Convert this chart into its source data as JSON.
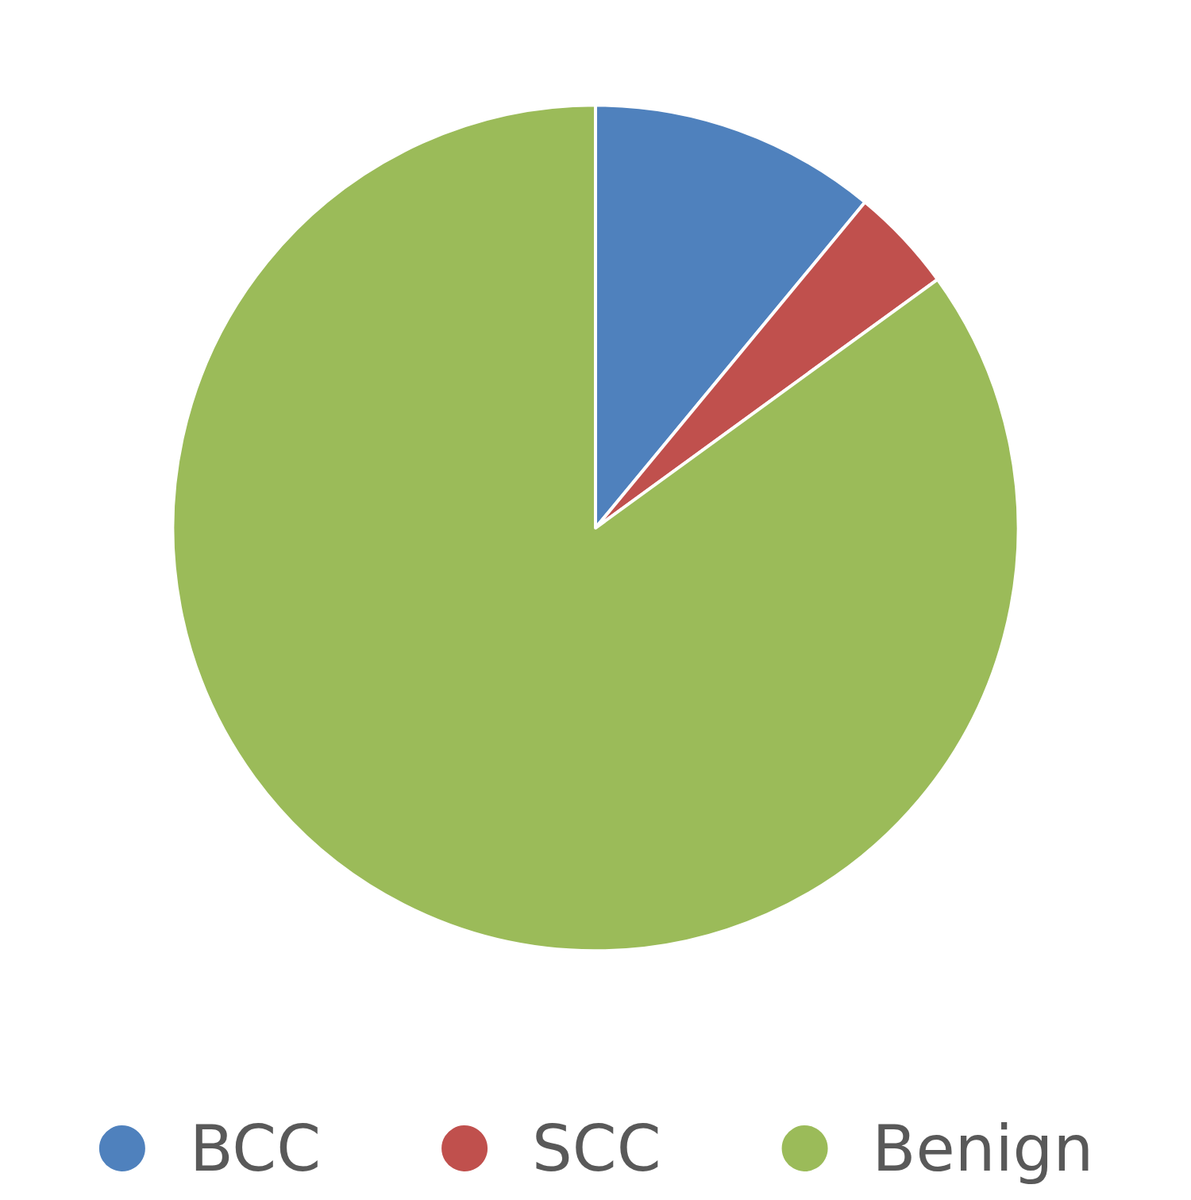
{
  "chart_data": {
    "type": "pie",
    "categories": [
      "BCC",
      "SCC",
      "Benign"
    ],
    "values": [
      11,
      4,
      85
    ],
    "colors": [
      "#4f81bd",
      "#c0504d",
      "#9bbb59"
    ],
    "legend": "bottom"
  }
}
